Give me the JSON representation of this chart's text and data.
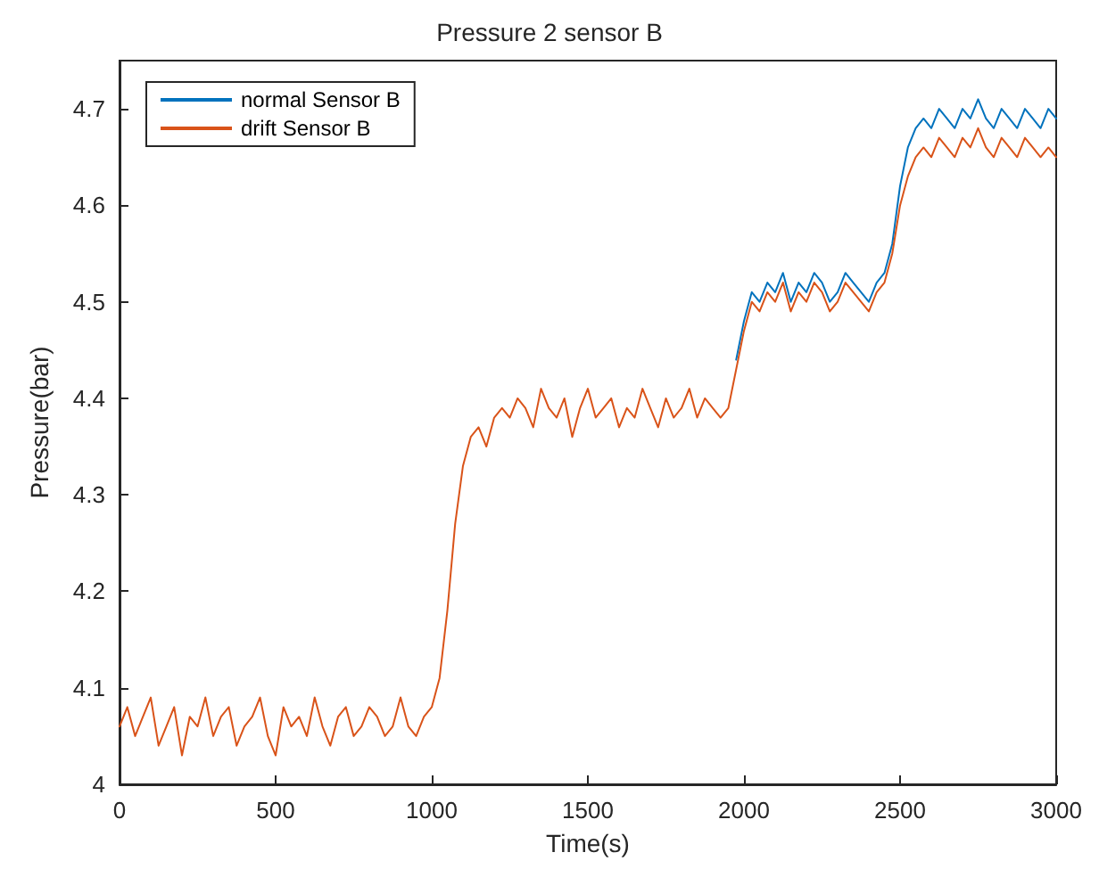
{
  "chart_data": {
    "type": "line",
    "title": "Pressure 2 sensor B",
    "xlabel": "Time(s)",
    "ylabel": "Pressure(bar)",
    "x": [
      0,
      25,
      50,
      75,
      100,
      125,
      150,
      175,
      200,
      225,
      250,
      275,
      300,
      325,
      350,
      375,
      400,
      425,
      450,
      475,
      500,
      525,
      550,
      575,
      600,
      625,
      650,
      675,
      700,
      725,
      750,
      775,
      800,
      825,
      850,
      875,
      900,
      925,
      950,
      975,
      1000,
      1025,
      1050,
      1075,
      1100,
      1125,
      1150,
      1175,
      1200,
      1225,
      1250,
      1275,
      1300,
      1325,
      1350,
      1375,
      1400,
      1425,
      1450,
      1475,
      1500,
      1525,
      1550,
      1575,
      1600,
      1625,
      1650,
      1675,
      1700,
      1725,
      1750,
      1775,
      1800,
      1825,
      1850,
      1875,
      1900,
      1925,
      1950,
      1975,
      2000,
      2025,
      2050,
      2075,
      2100,
      2125,
      2150,
      2175,
      2200,
      2225,
      2250,
      2275,
      2300,
      2325,
      2350,
      2375,
      2400,
      2425,
      2450,
      2475,
      2500,
      2525,
      2550,
      2575,
      2600,
      2625,
      2650,
      2675,
      2700,
      2725,
      2750,
      2775,
      2800,
      2825,
      2850,
      2875,
      2900,
      2925,
      2950,
      2975,
      3000
    ],
    "series": [
      {
        "name": "normal Sensor B",
        "color": "#0072bd",
        "values": [
          null,
          null,
          null,
          null,
          null,
          null,
          null,
          null,
          null,
          null,
          null,
          null,
          null,
          null,
          null,
          null,
          null,
          null,
          null,
          null,
          null,
          null,
          null,
          null,
          null,
          null,
          null,
          null,
          null,
          null,
          null,
          null,
          null,
          null,
          null,
          null,
          null,
          null,
          null,
          null,
          null,
          null,
          null,
          null,
          null,
          null,
          null,
          null,
          null,
          null,
          null,
          null,
          null,
          null,
          null,
          null,
          null,
          null,
          null,
          null,
          null,
          null,
          null,
          null,
          null,
          null,
          null,
          null,
          null,
          null,
          null,
          null,
          null,
          null,
          null,
          null,
          null,
          null,
          null,
          4.44,
          4.48,
          4.51,
          4.5,
          4.52,
          4.51,
          4.53,
          4.5,
          4.52,
          4.51,
          4.53,
          4.52,
          4.5,
          4.51,
          4.53,
          4.52,
          4.51,
          4.5,
          4.52,
          4.53,
          4.56,
          4.62,
          4.66,
          4.68,
          4.69,
          4.68,
          4.7,
          4.69,
          4.68,
          4.7,
          4.69,
          4.71,
          4.69,
          4.68,
          4.7,
          4.69,
          4.68,
          4.7,
          4.69,
          4.68,
          4.7,
          4.69
        ]
      },
      {
        "name": "drift Sensor B",
        "color": "#d95319",
        "values": [
          4.06,
          4.08,
          4.05,
          4.07,
          4.09,
          4.04,
          4.06,
          4.08,
          4.03,
          4.07,
          4.06,
          4.09,
          4.05,
          4.07,
          4.08,
          4.04,
          4.06,
          4.07,
          4.09,
          4.05,
          4.03,
          4.08,
          4.06,
          4.07,
          4.05,
          4.09,
          4.06,
          4.04,
          4.07,
          4.08,
          4.05,
          4.06,
          4.08,
          4.07,
          4.05,
          4.06,
          4.09,
          4.06,
          4.05,
          4.07,
          4.08,
          4.11,
          4.18,
          4.27,
          4.33,
          4.36,
          4.37,
          4.35,
          4.38,
          4.39,
          4.38,
          4.4,
          4.39,
          4.37,
          4.41,
          4.39,
          4.38,
          4.4,
          4.36,
          4.39,
          4.41,
          4.38,
          4.39,
          4.4,
          4.37,
          4.39,
          4.38,
          4.41,
          4.39,
          4.37,
          4.4,
          4.38,
          4.39,
          4.41,
          4.38,
          4.4,
          4.39,
          4.38,
          4.39,
          4.43,
          4.47,
          4.5,
          4.49,
          4.51,
          4.5,
          4.52,
          4.49,
          4.51,
          4.5,
          4.52,
          4.51,
          4.49,
          4.5,
          4.52,
          4.51,
          4.5,
          4.49,
          4.51,
          4.52,
          4.55,
          4.6,
          4.63,
          4.65,
          4.66,
          4.65,
          4.67,
          4.66,
          4.65,
          4.67,
          4.66,
          4.68,
          4.66,
          4.65,
          4.67,
          4.66,
          4.65,
          4.67,
          4.66,
          4.65,
          4.66,
          4.65
        ]
      }
    ],
    "xlim": [
      0,
      3000
    ],
    "xticks": [
      0,
      500,
      1000,
      1500,
      2000,
      2500,
      3000
    ],
    "ylim": [
      4,
      4.75
    ],
    "yticks": [
      4,
      4.1,
      4.2,
      4.3,
      4.4,
      4.5,
      4.6,
      4.7
    ],
    "grid": false,
    "legend": "top left",
    "marker": "none",
    "line_style": "solid"
  }
}
